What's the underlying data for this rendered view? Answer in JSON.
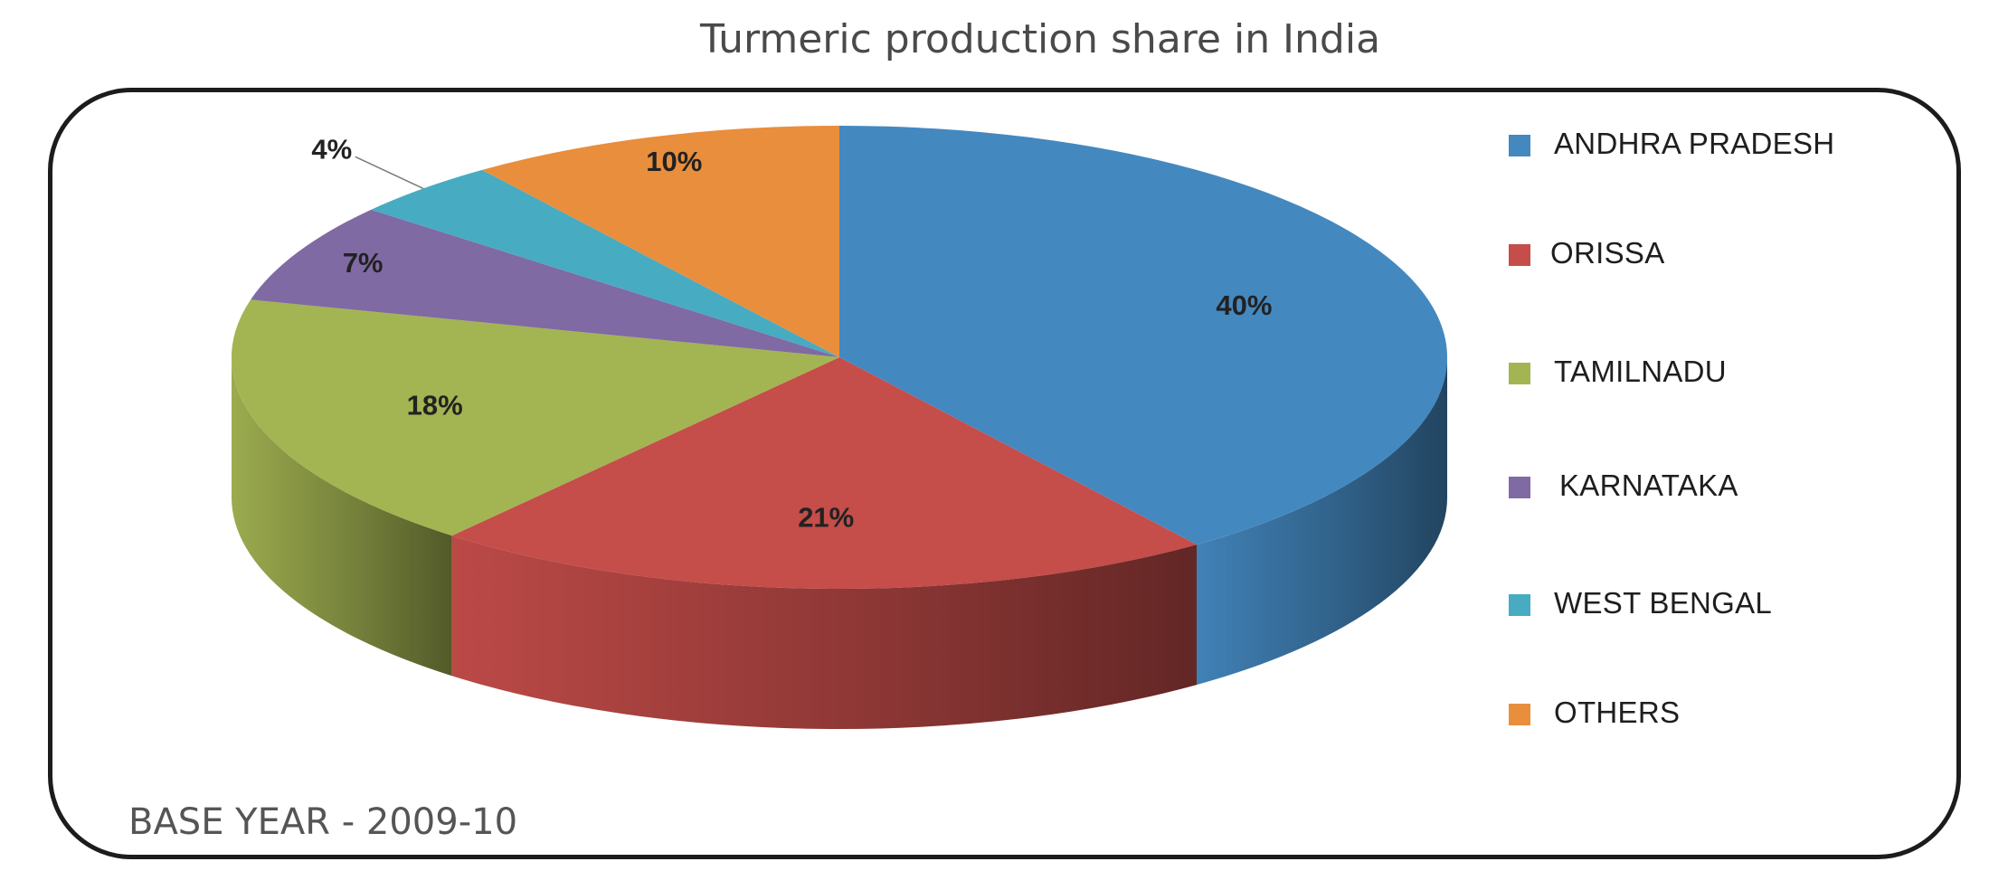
{
  "chart_data": {
    "type": "pie",
    "title": "Turmeric production share in India",
    "categories": [
      "ANDHRA PRADESH",
      "ORISSA",
      "TAMILNADU",
      "KARNATAKA",
      "WEST BENGAL",
      "OTHERS"
    ],
    "values": [
      40,
      21,
      18,
      7,
      4,
      10
    ],
    "labels": [
      "40%",
      "21%",
      "18%",
      "7%",
      "4%",
      "10%"
    ],
    "colors": [
      "#4488c0",
      "#c54d4a",
      "#a3b452",
      "#7f6aa4",
      "#47abc2",
      "#e98e3c"
    ],
    "legend_position": "right",
    "style": "3d",
    "annotation": "BASE YEAR - 2009-10"
  },
  "legend": {
    "items": [
      {
        "label": "ANDHRA PRADESH",
        "color": "#4488c0"
      },
      {
        "label": "ORISSA",
        "color": "#c54d4a"
      },
      {
        "label": "TAMILNADU",
        "color": "#a3b452"
      },
      {
        "label": "KARNATAKA",
        "color": "#7f6aa4"
      },
      {
        "label": "WEST BENGAL",
        "color": "#47abc2"
      },
      {
        "label": "OTHERS",
        "color": "#e98e3c"
      }
    ]
  }
}
